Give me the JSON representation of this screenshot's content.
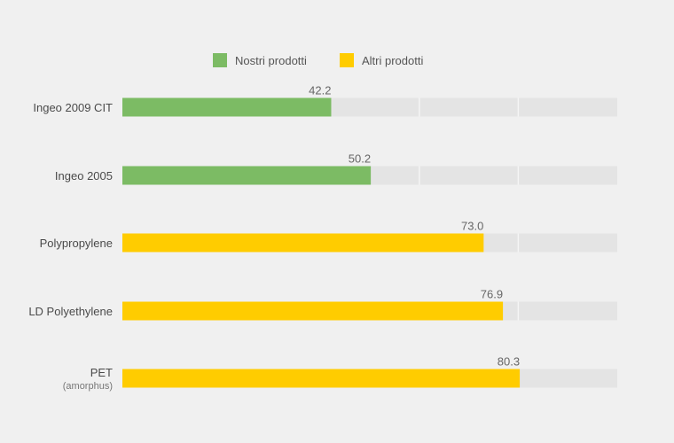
{
  "chart_data": {
    "type": "bar",
    "orientation": "horizontal",
    "categories": [
      "Ingeo 2009 CIT",
      "Ingeo 2005",
      "Polypropylene",
      "LD Polyethylene",
      "PET"
    ],
    "category_sublabels": [
      "",
      "",
      "",
      "",
      "(amorphus)"
    ],
    "values": [
      42.2,
      50.2,
      73.0,
      76.9,
      80.3
    ],
    "value_labels": [
      "42.2",
      "50.2",
      "73.0",
      "76.9",
      "80.3"
    ],
    "groups": [
      "Nostri prodotti",
      "Nostri prodotti",
      "Altri prodotti",
      "Altri prodotti",
      "Altri prodotti"
    ],
    "legend": [
      {
        "name": "Nostri prodotti",
        "color": "#7cbb64"
      },
      {
        "name": "Altri prodotti",
        "color": "#ffcc00"
      }
    ],
    "legend_position": "top-center",
    "xlim": [
      0,
      100
    ],
    "grid": true,
    "track_color": "#e4e4e4",
    "title": "",
    "xlabel": "",
    "ylabel": ""
  }
}
